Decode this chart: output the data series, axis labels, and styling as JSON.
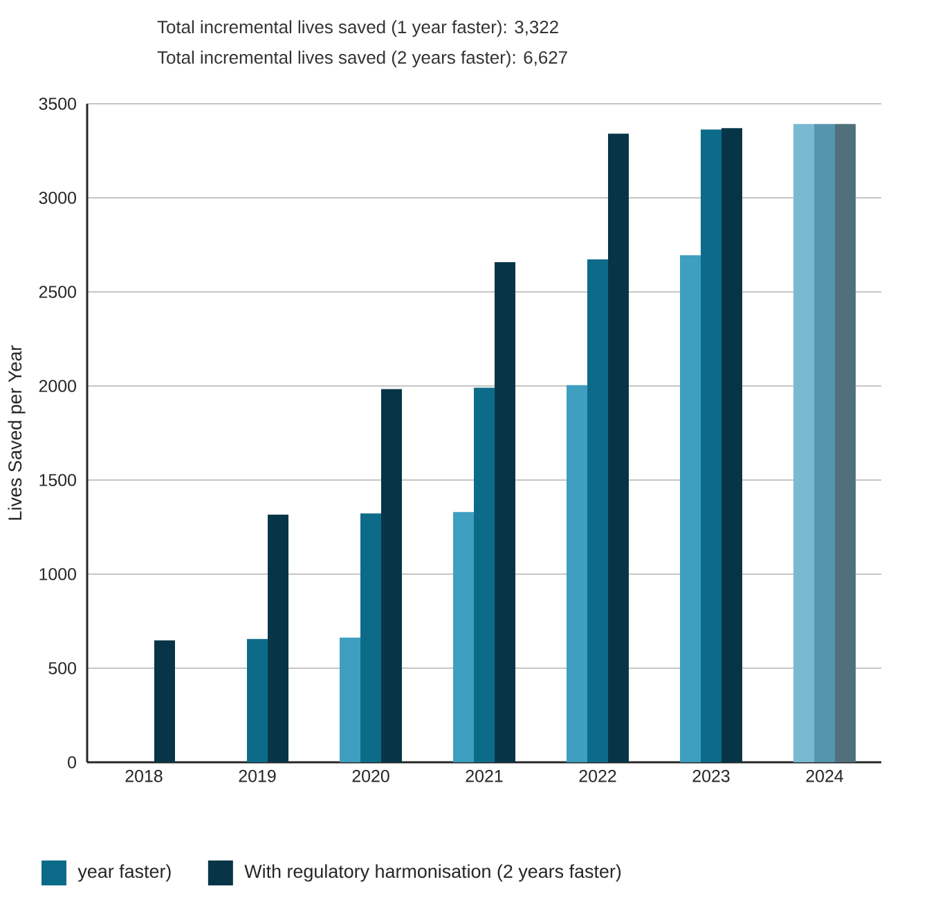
{
  "chart_data": {
    "type": "bar",
    "title": "Total incremental lives saved (1 year faster): 3,322",
    "subtitle": "Total incremental lives saved (2 years faster): 6,627",
    "ylabel": "Lives Saved per Year",
    "categories": [
      "2018",
      "2019",
      "2020",
      "2021",
      "2022",
      "2023",
      "2024"
    ],
    "series": [
      {
        "colors": [
          "#3f9fc0",
          "#3f9fc0",
          "#3f9fc0",
          "#3f9fc0",
          "#3f9fc0",
          "#3f9fc0",
          "#79b9d2"
        ],
        "values": [
          null,
          null,
          663,
          1330,
          2005,
          2695,
          3392
        ]
      },
      {
        "name": "year faster)",
        "colors": [
          "#0d6b8a",
          "#0d6b8a",
          "#0d6b8a",
          "#0d6b8a",
          "#0d6b8a",
          "#0d6b8a",
          "#5596ae"
        ],
        "values": [
          null,
          655,
          1323,
          1991,
          2673,
          3363,
          3392
        ]
      },
      {
        "name": "With regulatory harmonisation (2 years faster)",
        "colors": [
          "#073547",
          "#073547",
          "#073547",
          "#073547",
          "#073547",
          "#073547",
          "#50707c"
        ],
        "values": [
          648,
          1316,
          1983,
          2658,
          3341,
          3370,
          3392
        ]
      }
    ],
    "ylim": [
      0,
      3500
    ],
    "yticks": [
      0,
      500,
      1000,
      1500,
      2000,
      2500,
      3000,
      3500
    ],
    "grid": "y",
    "legend": "bottom"
  }
}
